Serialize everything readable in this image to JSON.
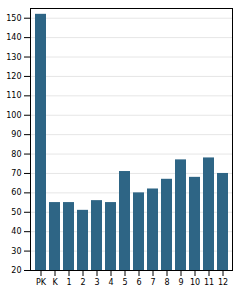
{
  "chart_data": {
    "type": "bar",
    "categories": [
      "PK",
      "K",
      "1",
      "2",
      "3",
      "4",
      "5",
      "6",
      "7",
      "8",
      "9",
      "10",
      "11",
      "12"
    ],
    "values": [
      152,
      55,
      55,
      51,
      56,
      55,
      71,
      60,
      62,
      67,
      77,
      68,
      78,
      70
    ],
    "color": "#2e6585",
    "ylim": [
      20,
      155
    ],
    "yticks": [
      20,
      30,
      40,
      50,
      60,
      70,
      80,
      90,
      100,
      110,
      120,
      130,
      140,
      150
    ],
    "grid": true
  }
}
